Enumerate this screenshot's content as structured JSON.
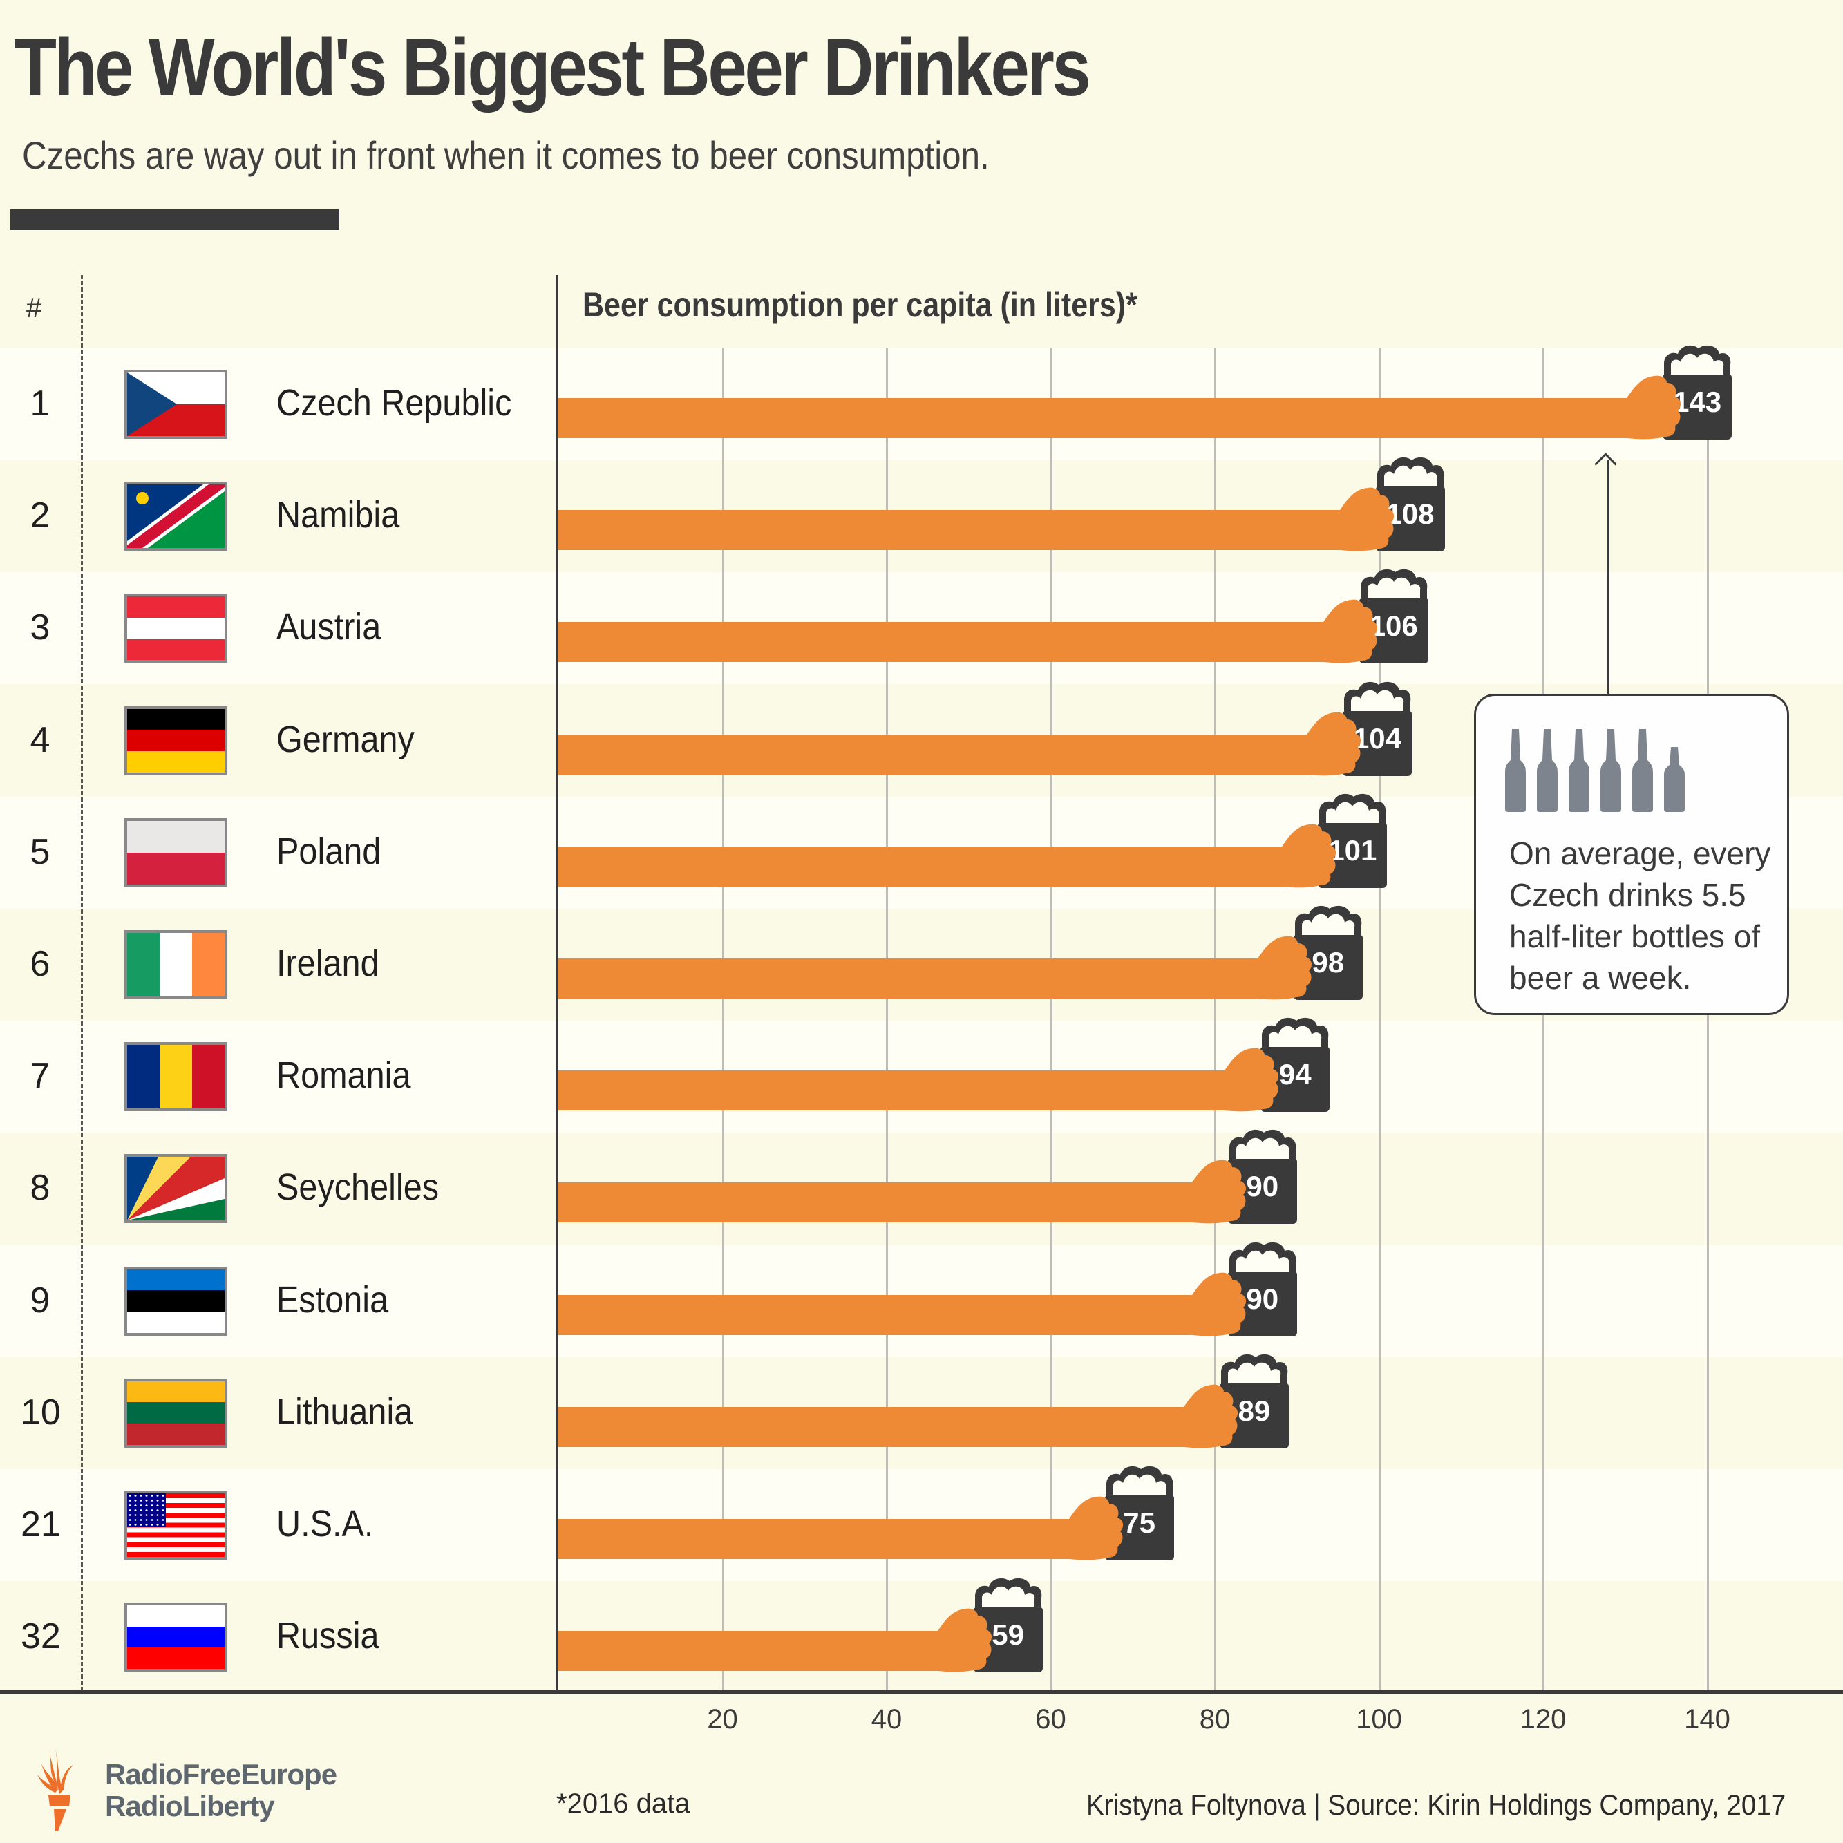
{
  "header": {
    "title": "The World's Biggest Beer Drinkers",
    "subtitle": "Czechs are way out in front when it comes to beer consumption."
  },
  "table": {
    "rank_header": "#",
    "axis_title": "Beer consumption per capita (in liters)*"
  },
  "colors": {
    "background": "#fbfae6",
    "row_light": "#fefef4",
    "bar": "#ee8a36",
    "mug": "#3a3a3a",
    "text": "#3a3a3a",
    "bottle": "#7d848d"
  },
  "rows": [
    {
      "rank": "1",
      "country": "Czech Republic",
      "value": 143,
      "label": "143",
      "flag": "czech-republic"
    },
    {
      "rank": "2",
      "country": "Namibia",
      "value": 108,
      "label": "108",
      "flag": "namibia"
    },
    {
      "rank": "3",
      "country": "Austria",
      "value": 106,
      "label": "106",
      "flag": "austria"
    },
    {
      "rank": "4",
      "country": "Germany",
      "value": 104,
      "label": "104",
      "flag": "germany"
    },
    {
      "rank": "5",
      "country": "Poland",
      "value": 101,
      "label": "101",
      "flag": "poland"
    },
    {
      "rank": "6",
      "country": "Ireland",
      "value": 98,
      "label": "98",
      "flag": "ireland"
    },
    {
      "rank": "7",
      "country": "Romania",
      "value": 94,
      "label": "94",
      "flag": "romania"
    },
    {
      "rank": "8",
      "country": "Seychelles",
      "value": 90,
      "label": "90",
      "flag": "seychelles"
    },
    {
      "rank": "9",
      "country": "Estonia",
      "value": 90,
      "label": "90",
      "flag": "estonia"
    },
    {
      "rank": "10",
      "country": "Lithuania",
      "value": 89,
      "label": "89",
      "flag": "lithuania"
    },
    {
      "rank": "21",
      "country": "U.S.A.",
      "value": 75,
      "label": "75",
      "flag": "usa"
    },
    {
      "rank": "32",
      "country": "Russia",
      "value": 59,
      "label": "59",
      "flag": "russia"
    }
  ],
  "axis": {
    "ticks": [
      "20",
      "40",
      "60",
      "80",
      "100",
      "120",
      "140"
    ]
  },
  "callout": {
    "bottles_full": 5,
    "bottles_half": 1,
    "text": "On average, every Czech drinks 5.5 half-liter bottles of beer a week."
  },
  "footer": {
    "logo_line1": "RadioFreeEurope",
    "logo_line2": "RadioLiberty",
    "footnote": "*2016 data",
    "credit": "Kristyna Foltynova | Source: Kirin Holdings Company, 2017"
  },
  "chart_data": {
    "type": "bar",
    "orientation": "horizontal",
    "title": "The World's Biggest Beer Drinkers",
    "subtitle": "Czechs are way out in front when it comes to beer consumption.",
    "xlabel": "Beer consumption per capita (in liters)*",
    "ylabel": "",
    "categories": [
      "Czech Republic",
      "Namibia",
      "Austria",
      "Germany",
      "Poland",
      "Ireland",
      "Romania",
      "Seychelles",
      "Estonia",
      "Lithuania",
      "U.S.A.",
      "Russia"
    ],
    "ranks": [
      1,
      2,
      3,
      4,
      5,
      6,
      7,
      8,
      9,
      10,
      21,
      32
    ],
    "values": [
      143,
      108,
      106,
      104,
      101,
      98,
      94,
      90,
      90,
      89,
      75,
      59
    ],
    "xlim": [
      0,
      155
    ],
    "xticks": [
      20,
      40,
      60,
      80,
      100,
      120,
      140
    ],
    "grid": true,
    "legend": null,
    "annotations": [
      {
        "target": "Czech Republic",
        "text": "On average, every Czech drinks 5.5 half-liter bottles of beer a week."
      }
    ],
    "footnote": "*2016 data",
    "source": "Kristyna Foltynova | Source: Kirin Holdings Company, 2017"
  }
}
